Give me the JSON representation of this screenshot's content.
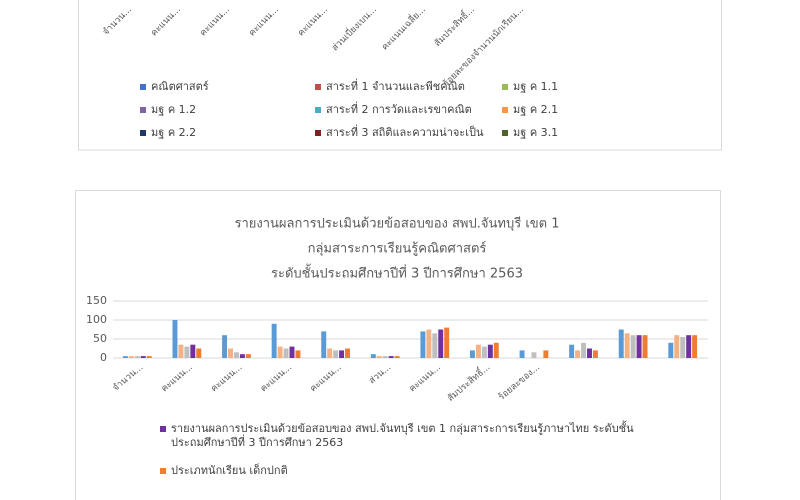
{
  "chart_data": [
    {
      "type": "bar",
      "categories": [
        "จำนวน...",
        "คะแนน...",
        "คะแนน...",
        "คะแนน...",
        "คะแนน...",
        "ส่วนเบี่ยงเบน...",
        "คะแนนเฉลี่ย...",
        "สัมประสิทธิ์...",
        "ร้อยละของจำนวนนักเรียน..."
      ],
      "series": [
        {
          "name": "คณิตศาสตร์",
          "color": "#4472c4"
        },
        {
          "name": "สาระที่ 1 จำนวนและพีชคณิต",
          "color": "#c0504d"
        },
        {
          "name": "มฐ ค 1.1",
          "color": "#9bbb59"
        },
        {
          "name": "มฐ ค 1.2",
          "color": "#8064a2"
        },
        {
          "name": "สาระที่ 2  การวัดและเรขาคณิต",
          "color": "#4bacc6"
        },
        {
          "name": "มฐ ค 2.1",
          "color": "#f79646"
        },
        {
          "name": "มฐ ค 2.2",
          "color": "#1f3864"
        },
        {
          "name": "สาระที่ 3 สถิติและความน่าจะเป็น",
          "color": "#7f1f1f"
        },
        {
          "name": "มฐ ค 3.1",
          "color": "#4f6228"
        }
      ]
    },
    {
      "type": "bar",
      "title": [
        "รายงานผลการประเมินด้วยข้อสอบของ  สพป.จันทบุรี เขต 1",
        "กลุ่มสาระการเรียนรู้คณิตศาสตร์",
        "ระดับชั้นประถมศึกษาปีที่  3 ปีการศึกษา  2563"
      ],
      "categories": [
        "จำนวน...",
        "คะแนน...",
        "คะแนน...",
        "คะแนน...",
        "คะแนน...",
        "ส่วน...",
        "คะแนน...",
        "สัมประสิทธิ์...",
        "ร้อยละของ...",
        null,
        null,
        null
      ],
      "ylim": [
        0,
        150
      ],
      "yticks": [
        0,
        50,
        100,
        150
      ],
      "grid": true,
      "series": [
        {
          "color": "#5b9bd5",
          "values": [
            5,
            100,
            60,
            90,
            70,
            10,
            70,
            20,
            20,
            35,
            75,
            40
          ]
        },
        {
          "color": "#f4b183",
          "values": [
            5,
            35,
            25,
            30,
            25,
            5,
            75,
            35,
            0,
            20,
            65,
            60
          ]
        },
        {
          "color": "#bfbfbf",
          "values": [
            5,
            30,
            15,
            25,
            20,
            5,
            65,
            30,
            15,
            40,
            60,
            55
          ]
        },
        {
          "name": "รายงานผลการประเมินด้วยข้อสอบของ สพป.จันทบุรี เขต 1  กลุ่มสาระการเรียนรู้ภาษาไทย ระดับชั้นประถมศึกษาปีที่ 3 ปีการศึกษา 2563",
          "color": "#7030a0",
          "values": [
            5,
            35,
            10,
            30,
            20,
            5,
            75,
            35,
            0,
            25,
            60,
            60
          ]
        },
        {
          "name": "ประเภทนักเรียน เด็กปกติ",
          "color": "#ed7d31",
          "values": [
            5,
            25,
            10,
            20,
            25,
            5,
            80,
            40,
            20,
            20,
            60,
            60
          ]
        }
      ]
    }
  ]
}
